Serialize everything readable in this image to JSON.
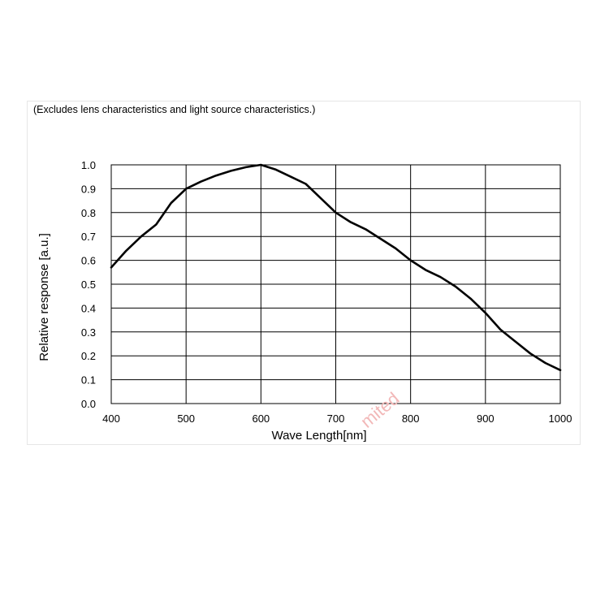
{
  "chart_data": {
    "type": "line",
    "subtitle": "(Excludes lens characteristics and light source characteristics.)",
    "xlabel": "Wave Length[nm]",
    "ylabel": "Relative response [a.u.]",
    "xlim": [
      400,
      1000
    ],
    "ylim": [
      0,
      1.0
    ],
    "x_ticks": [
      "400",
      "500",
      "600",
      "700",
      "800",
      "900",
      "1000"
    ],
    "y_ticks": [
      "0.0",
      "0.1",
      "0.2",
      "0.3",
      "0.4",
      "0.5",
      "0.6",
      "0.7",
      "0.8",
      "0.9",
      "1.0"
    ],
    "grid": true,
    "series": [
      {
        "color": "#000000",
        "x": [
          400,
          420,
          440,
          460,
          480,
          500,
          520,
          540,
          560,
          580,
          600,
          620,
          640,
          660,
          680,
          700,
          720,
          740,
          760,
          780,
          800,
          820,
          840,
          860,
          880,
          900,
          920,
          940,
          960,
          980,
          1000
        ],
        "y": [
          0.57,
          0.64,
          0.7,
          0.75,
          0.84,
          0.9,
          0.93,
          0.955,
          0.975,
          0.99,
          1.0,
          0.98,
          0.95,
          0.92,
          0.86,
          0.8,
          0.76,
          0.73,
          0.69,
          0.65,
          0.6,
          0.56,
          0.53,
          0.49,
          0.44,
          0.38,
          0.31,
          0.26,
          0.21,
          0.17,
          0.14
        ]
      }
    ]
  },
  "watermark": "mited"
}
